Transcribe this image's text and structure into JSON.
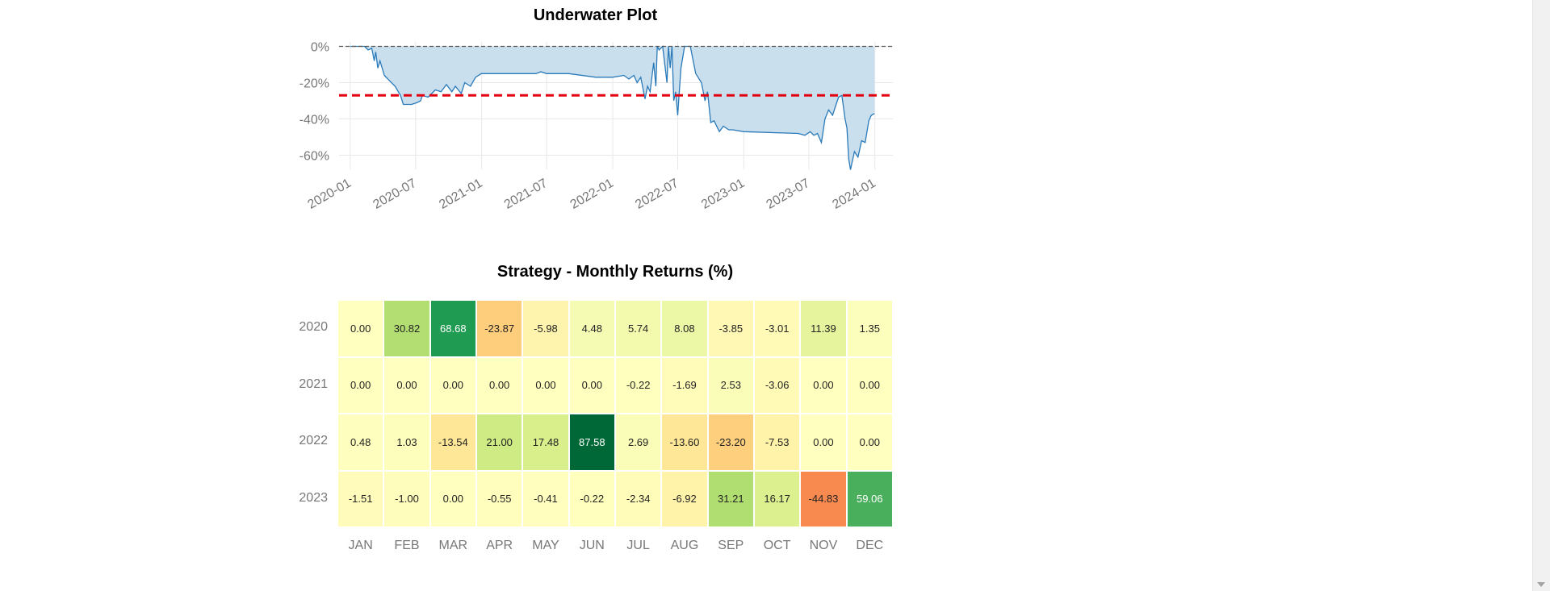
{
  "chart_data": [
    {
      "type": "area",
      "title": "Underwater Plot",
      "xlabel": "",
      "ylabel": "",
      "y_tick_labels": [
        "0%",
        "-20%",
        "-40%",
        "-60%"
      ],
      "y_ticks": [
        0,
        -20,
        -40,
        -60
      ],
      "x_tick_labels": [
        "2020-01",
        "2020-07",
        "2021-01",
        "2021-07",
        "2022-01",
        "2022-07",
        "2023-01",
        "2023-07",
        "2024-01"
      ],
      "x_ticks": [
        "2020-01-01",
        "2020-07-01",
        "2021-01-01",
        "2021-07-01",
        "2022-01-01",
        "2022-07-01",
        "2023-01-01",
        "2023-07-01",
        "2024-01-01"
      ],
      "xlim": [
        "2019-12-01",
        "2024-02-20"
      ],
      "ylim": [
        -68,
        0
      ],
      "grid": true,
      "reference_lines": [
        {
          "y": 0,
          "style": "dashed",
          "color": "#555555"
        },
        {
          "y": -27,
          "style": "dashed",
          "color": "#e3000f"
        }
      ],
      "series": [
        {
          "color": "#2a7ab9",
          "fill": "#c9dfee",
          "points": [
            [
              "2020-01-01",
              0
            ],
            [
              "2020-02-10",
              0
            ],
            [
              "2020-02-20",
              -2
            ],
            [
              "2020-03-01",
              -1
            ],
            [
              "2020-03-08",
              -8
            ],
            [
              "2020-03-12",
              -3
            ],
            [
              "2020-03-18",
              -12
            ],
            [
              "2020-03-24",
              -8
            ],
            [
              "2020-04-05",
              -16
            ],
            [
              "2020-04-20",
              -19
            ],
            [
              "2020-05-05",
              -22
            ],
            [
              "2020-05-20",
              -27
            ],
            [
              "2020-05-28",
              -32
            ],
            [
              "2020-06-20",
              -32
            ],
            [
              "2020-07-05",
              -31
            ],
            [
              "2020-07-15",
              -30
            ],
            [
              "2020-07-20",
              -27
            ],
            [
              "2020-08-05",
              -28
            ],
            [
              "2020-08-25",
              -24
            ],
            [
              "2020-09-10",
              -25
            ],
            [
              "2020-09-25",
              -21
            ],
            [
              "2020-10-10",
              -25
            ],
            [
              "2020-10-20",
              -22
            ],
            [
              "2020-11-05",
              -26
            ],
            [
              "2020-11-15",
              -20
            ],
            [
              "2020-12-01",
              -22
            ],
            [
              "2020-12-15",
              -17
            ],
            [
              "2020-12-31",
              -15
            ],
            [
              "2021-01-15",
              -15
            ],
            [
              "2021-06-01",
              -15
            ],
            [
              "2021-06-15",
              -14
            ],
            [
              "2021-07-01",
              -15
            ],
            [
              "2021-09-01",
              -15
            ],
            [
              "2021-11-15",
              -17
            ],
            [
              "2022-01-01",
              -17
            ],
            [
              "2022-02-01",
              -16
            ],
            [
              "2022-02-15",
              -18
            ],
            [
              "2022-03-01",
              -16
            ],
            [
              "2022-03-10",
              -20
            ],
            [
              "2022-03-20",
              -17
            ],
            [
              "2022-04-01",
              -29
            ],
            [
              "2022-04-08",
              -22
            ],
            [
              "2022-04-15",
              -25
            ],
            [
              "2022-04-25",
              -9
            ],
            [
              "2022-05-01",
              -22
            ],
            [
              "2022-05-05",
              0
            ],
            [
              "2022-05-10",
              -2
            ],
            [
              "2022-05-20",
              0
            ],
            [
              "2022-06-01",
              -20
            ],
            [
              "2022-06-05",
              0
            ],
            [
              "2022-06-10",
              -12
            ],
            [
              "2022-06-15",
              0
            ],
            [
              "2022-06-20",
              -30
            ],
            [
              "2022-06-25",
              -25
            ],
            [
              "2022-07-01",
              -38
            ],
            [
              "2022-07-05",
              -26
            ],
            [
              "2022-07-10",
              -12
            ],
            [
              "2022-07-20",
              0
            ],
            [
              "2022-08-05",
              0
            ],
            [
              "2022-08-20",
              -15
            ],
            [
              "2022-09-05",
              -20
            ],
            [
              "2022-09-15",
              -30
            ],
            [
              "2022-09-22",
              -25
            ],
            [
              "2022-10-01",
              -42
            ],
            [
              "2022-10-10",
              -41
            ],
            [
              "2022-10-25",
              -47
            ],
            [
              "2022-11-05",
              -44
            ],
            [
              "2022-11-20",
              -46
            ],
            [
              "2022-12-01",
              -46
            ],
            [
              "2023-01-01",
              -47
            ],
            [
              "2023-06-01",
              -48
            ],
            [
              "2023-06-20",
              -49
            ],
            [
              "2023-07-05",
              -47
            ],
            [
              "2023-07-15",
              -49
            ],
            [
              "2023-07-25",
              -48
            ],
            [
              "2023-08-05",
              -53
            ],
            [
              "2023-08-15",
              -40
            ],
            [
              "2023-08-25",
              -35
            ],
            [
              "2023-09-05",
              -38
            ],
            [
              "2023-09-15",
              -32
            ],
            [
              "2023-09-22",
              -28
            ],
            [
              "2023-10-01",
              -27
            ],
            [
              "2023-10-10",
              -40
            ],
            [
              "2023-10-15",
              -45
            ],
            [
              "2023-10-20",
              -62
            ],
            [
              "2023-10-25",
              -68
            ],
            [
              "2023-11-05",
              -58
            ],
            [
              "2023-11-15",
              -61
            ],
            [
              "2023-11-25",
              -52
            ],
            [
              "2023-12-05",
              -53
            ],
            [
              "2023-12-15",
              -41
            ],
            [
              "2023-12-22",
              -38
            ],
            [
              "2023-12-31",
              -37
            ]
          ]
        }
      ]
    },
    {
      "type": "heatmap",
      "title": "Strategy - Monthly Returns (%)",
      "xlabel": "",
      "ylabel": "",
      "columns": [
        "JAN",
        "FEB",
        "MAR",
        "APR",
        "MAY",
        "JUN",
        "JUL",
        "AUG",
        "SEP",
        "OCT",
        "NOV",
        "DEC"
      ],
      "rows": [
        "2020",
        "2021",
        "2022",
        "2023"
      ],
      "values": [
        [
          0.0,
          30.82,
          68.68,
          -23.87,
          -5.98,
          4.48,
          5.74,
          8.08,
          -3.85,
          -3.01,
          11.39,
          1.35
        ],
        [
          0.0,
          0.0,
          0.0,
          0.0,
          0.0,
          0.0,
          -0.22,
          -1.69,
          2.53,
          -3.06,
          0.0,
          0.0
        ],
        [
          0.48,
          1.03,
          -13.54,
          21.0,
          17.48,
          87.58,
          2.69,
          -13.6,
          -23.2,
          -7.53,
          0.0,
          0.0
        ],
        [
          -1.51,
          -1.0,
          0.0,
          -0.55,
          -0.41,
          -0.22,
          -2.34,
          -6.92,
          31.21,
          16.17,
          -44.83,
          59.06
        ]
      ],
      "labels": [
        [
          "0.00",
          "30.82",
          "68.68",
          "-23.87",
          "-5.98",
          "4.48",
          "5.74",
          "8.08",
          "-3.85",
          "-3.01",
          "11.39",
          "1.35"
        ],
        [
          "0.00",
          "0.00",
          "0.00",
          "0.00",
          "0.00",
          "0.00",
          "-0.22",
          "-1.69",
          "2.53",
          "-3.06",
          "0.00",
          "0.00"
        ],
        [
          "0.48",
          "1.03",
          "-13.54",
          "21.00",
          "17.48",
          "87.58",
          "2.69",
          "-13.60",
          "-23.20",
          "-7.53",
          "0.00",
          "0.00"
        ],
        [
          "-1.51",
          "-1.00",
          "0.00",
          "-0.55",
          "-0.41",
          "-0.22",
          "-2.34",
          "-6.92",
          "31.21",
          "16.17",
          "-44.83",
          "59.06"
        ]
      ],
      "colormap": "RdYlGn",
      "center": 0
    }
  ]
}
